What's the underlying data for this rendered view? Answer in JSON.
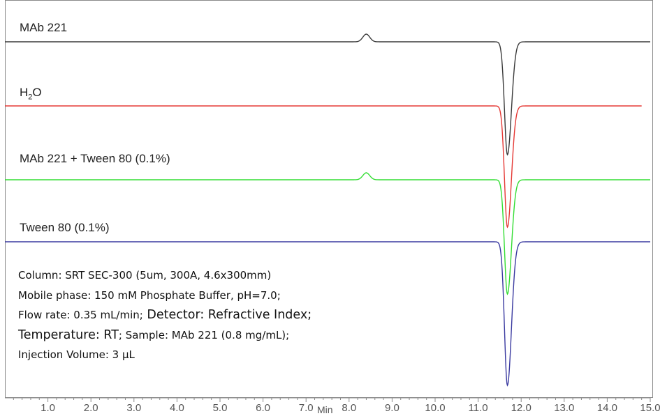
{
  "chart_data": {
    "type": "line",
    "xlabel": "Min",
    "xlim": [
      0,
      15
    ],
    "x_ticks": [
      "1.0",
      "2.0",
      "3.0",
      "4.0",
      "5.0",
      "6.0",
      "7.0",
      "8.0",
      "9.0",
      "10.0",
      "11.0",
      "12.0",
      "13.0",
      "14.0",
      "15.0"
    ],
    "x_tick_values": [
      1,
      2,
      3,
      4,
      5,
      6,
      7,
      8,
      9,
      10,
      11,
      12,
      13,
      14,
      15
    ],
    "series": [
      {
        "name": "MAb 221",
        "color": "#3a3a3a",
        "x_start": 0,
        "x_end": 15,
        "features": [
          {
            "kind": "peak_up",
            "x": 8.4,
            "height": 0.09
          },
          {
            "kind": "peak_down",
            "x": 11.68,
            "depth": 1.0
          }
        ]
      },
      {
        "name": "H2O",
        "color": "#e53935",
        "x_start": 0,
        "x_end": 14.8,
        "features": [
          {
            "kind": "peak_down",
            "x": 11.68,
            "depth": 1.0
          }
        ]
      },
      {
        "name": "MAb 221 + Tween 80 (0.1%)",
        "color": "#33dd33",
        "x_start": 0,
        "x_end": 15,
        "features": [
          {
            "kind": "peak_up",
            "x": 8.4,
            "height": 0.09
          },
          {
            "kind": "peak_down",
            "x": 11.68,
            "depth": 1.0
          }
        ]
      },
      {
        "name": "Tween 80 (0.1%)",
        "color": "#3a3aa0",
        "x_start": 0,
        "x_end": 15,
        "features": [
          {
            "kind": "peak_down",
            "x": 11.68,
            "depth": 1.0
          }
        ]
      }
    ]
  },
  "labels": {
    "mab221": "MAb 221",
    "h2o_h": "H",
    "h2o_sub": "2",
    "h2o_o": "O",
    "mab221_tween": "MAb 221 + Tween 80 (0.1%)",
    "tween": "Tween 80 (0.1%)"
  },
  "conditions": {
    "line1": "Column: SRT SEC-300 (5um, 300A, 4.6x300mm)",
    "line2": "Mobile phase: 150 mM Phosphate Buffer, pH=7.0;",
    "line3a": "Flow rate: 0.35 mL/min;",
    "line3b": " Detector: Refractive Index;",
    "line4a": "Temperature: RT",
    "line4b": "; Sample: MAb 221 (0.8 mg/mL);",
    "line5": "Injection Volume: 3 µL"
  }
}
